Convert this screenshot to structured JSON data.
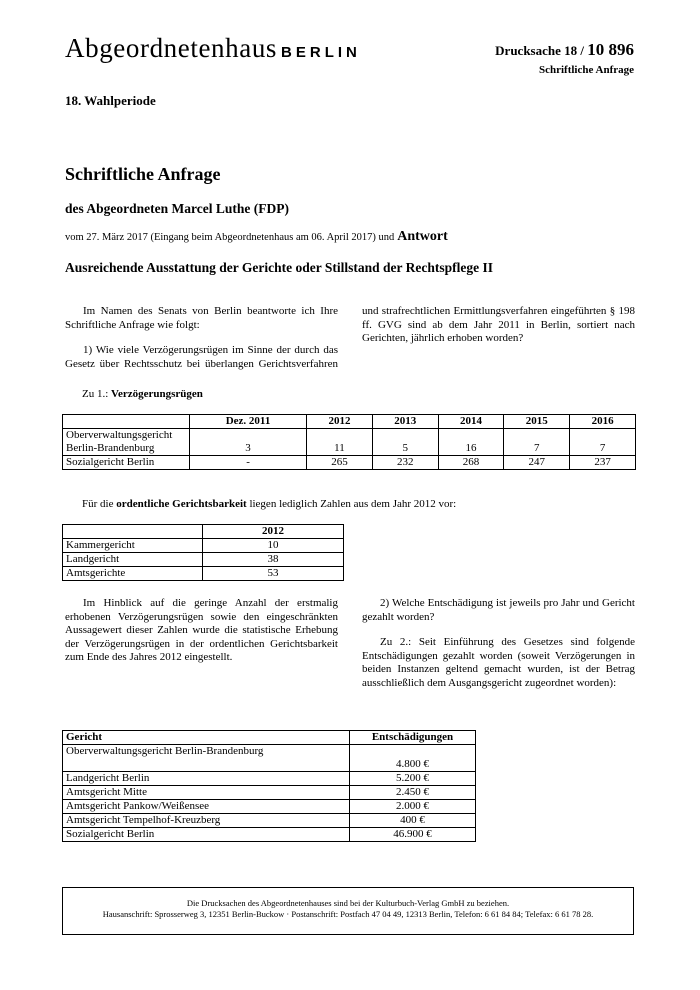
{
  "header": {
    "brand": "Abgeordnetenhaus",
    "brand_city": "BERLIN",
    "drucksache_label": "Drucksache 18 /",
    "drucksache_number": "10 896",
    "doc_type": "Schriftliche Anfrage",
    "period": "18. Wahlperiode"
  },
  "title": "Schriftliche Anfrage",
  "author": "des Abgeordneten Marcel Luthe (FDP)",
  "dates": "vom 27. März 2017 (Eingang beim Abgeordnetenhaus am 06. April 2017) und",
  "answer": "Antwort",
  "subject": "Ausreichende Ausstattung der Gerichte oder Stillstand der Rechtspflege II",
  "intro": "Im Namen des Senats von Berlin beantworte ich Ihre Schriftliche Anfrage wie folgt:",
  "question1": "1) Wie viele Verzögerungsrügen im Sinne der durch das Gesetz über Rechtsschutz bei überlangen Gerichtsverfahren und strafrechtlichen Ermittlungsverfahren eingeführten § 198 ff. GVG sind ab dem Jahr 2011 in Berlin, sortiert nach Gerichten, jährlich erhoben worden?",
  "answer1_label": "Zu 1.:",
  "answer1_heading": "Verzögerungsrügen",
  "table1": {
    "header": [
      "Dez. 2011",
      "2012",
      "2013",
      "2014",
      "2015",
      "2016"
    ],
    "rows": [
      [
        "Oberverwaltungsgericht Berlin-Brandenburg",
        "3",
        "11",
        "5",
        "16",
        "7",
        "7"
      ],
      [
        "Sozialgericht Berlin",
        "-",
        "265",
        "232",
        "268",
        "247",
        "237"
      ]
    ]
  },
  "note2012": {
    "prefix": "Für die",
    "bold": "ordentliche Gerichtsbarkeit",
    "suffix": "liegen lediglich Zahlen aus dem Jahr 2012 vor:"
  },
  "table2": {
    "header": [
      "2012"
    ],
    "rows": [
      [
        "Kammergericht",
        "10"
      ],
      [
        "Landgericht",
        "38"
      ],
      [
        "Amtsgerichte",
        "53"
      ]
    ]
  },
  "remark": "Im Hinblick auf die geringe Anzahl der erstmalig erhobenen Verzögerungsrügen sowie den eingeschränkten Aussagewert dieser Zahlen wurde die statistische Erhebung der Verzögerungsrügen in der ordentlichen Gerichtsbarkeit zum Ende des Jahres 2012 eingestellt.",
  "question2": "2) Welche Entschädigung ist jeweils pro Jahr und Gericht gezahlt worden?",
  "answer2_label": "Zu 2.:",
  "answer2": "Seit Einführung des Gesetzes sind folgende Entschädigungen gezahlt worden (soweit Verzögerungen in beiden Instanzen geltend gemacht wurden, ist der Betrag ausschließlich dem Ausgangsgericht zugeordnet worden):",
  "table3": {
    "header": [
      "Gericht",
      "Entschädigungen"
    ],
    "rows": [
      [
        "Oberverwaltungsgericht Berlin-Brandenburg",
        "4.800 €"
      ],
      [
        "Landgericht Berlin",
        "5.200 €"
      ],
      [
        "Amtsgericht Mitte",
        "2.450 €"
      ],
      [
        "Amtsgericht Pankow/Weißensee",
        "2.000 €"
      ],
      [
        "Amtsgericht Tempelhof-Kreuzberg",
        "400 €"
      ],
      [
        "Sozialgericht Berlin",
        "46.900 €"
      ]
    ]
  },
  "footer": {
    "line1": "Die Drucksachen des Abgeordnetenhauses sind bei der Kulturbuch-Verlag GmbH zu beziehen.",
    "line2": "Hausanschrift: Sprosserweg 3, 12351 Berlin-Buckow · Postanschrift: Postfach 47 04 49, 12313 Berlin, Telefon: 6 61 84 84; Telefax: 6 61 78 28."
  }
}
